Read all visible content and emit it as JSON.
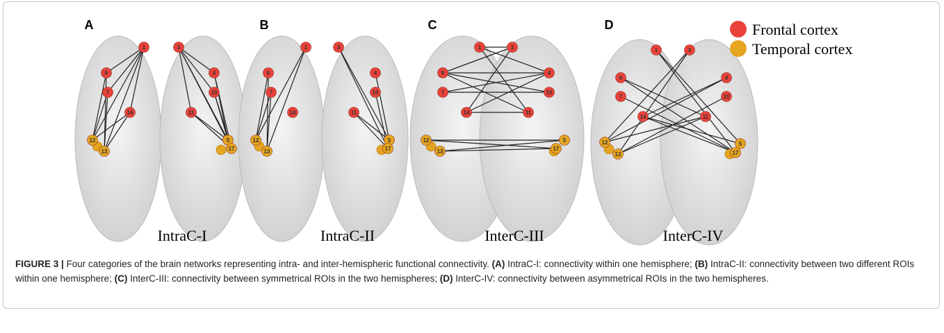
{
  "panels": [
    {
      "letter": "A",
      "caption": "IntraC-I"
    },
    {
      "letter": "B",
      "caption": "IntraC-II"
    },
    {
      "letter": "C",
      "caption": "InterC-III"
    },
    {
      "letter": "D",
      "caption": "InterC-IV"
    }
  ],
  "nodes": [
    "1",
    "3",
    "6",
    "4",
    "7",
    "10",
    "14",
    "11",
    "12",
    "13",
    "5",
    "17"
  ],
  "legend": [
    {
      "label": "Frontal cortex",
      "color": "#e8423a"
    },
    {
      "label": "Temporal cortex",
      "color": "#e5a520"
    }
  ],
  "figure": {
    "segments": [
      {
        "text": "FIGURE 3 |",
        "bold": true
      },
      {
        "text": " Four categories of the brain networks representing intra- and inter-hemispheric functional connectivity. ",
        "bold": false
      },
      {
        "text": "(A)",
        "bold": true
      },
      {
        "text": " IntraC-I: connectivity within one hemisphere; ",
        "bold": false
      },
      {
        "text": "(B)",
        "bold": true
      },
      {
        "text": " IntraC-II: connectivity between two different ROIs within one hemisphere; ",
        "bold": false
      },
      {
        "text": "(C)",
        "bold": true
      },
      {
        "text": " InterC-III: connectivity between symmetrical ROIs in the two hemispheres; ",
        "bold": false
      },
      {
        "text": "(D)",
        "bold": true
      },
      {
        "text": " InterC-IV: connectivity between asymmetrical ROIs in the two hemispheres.",
        "bold": false
      }
    ]
  }
}
